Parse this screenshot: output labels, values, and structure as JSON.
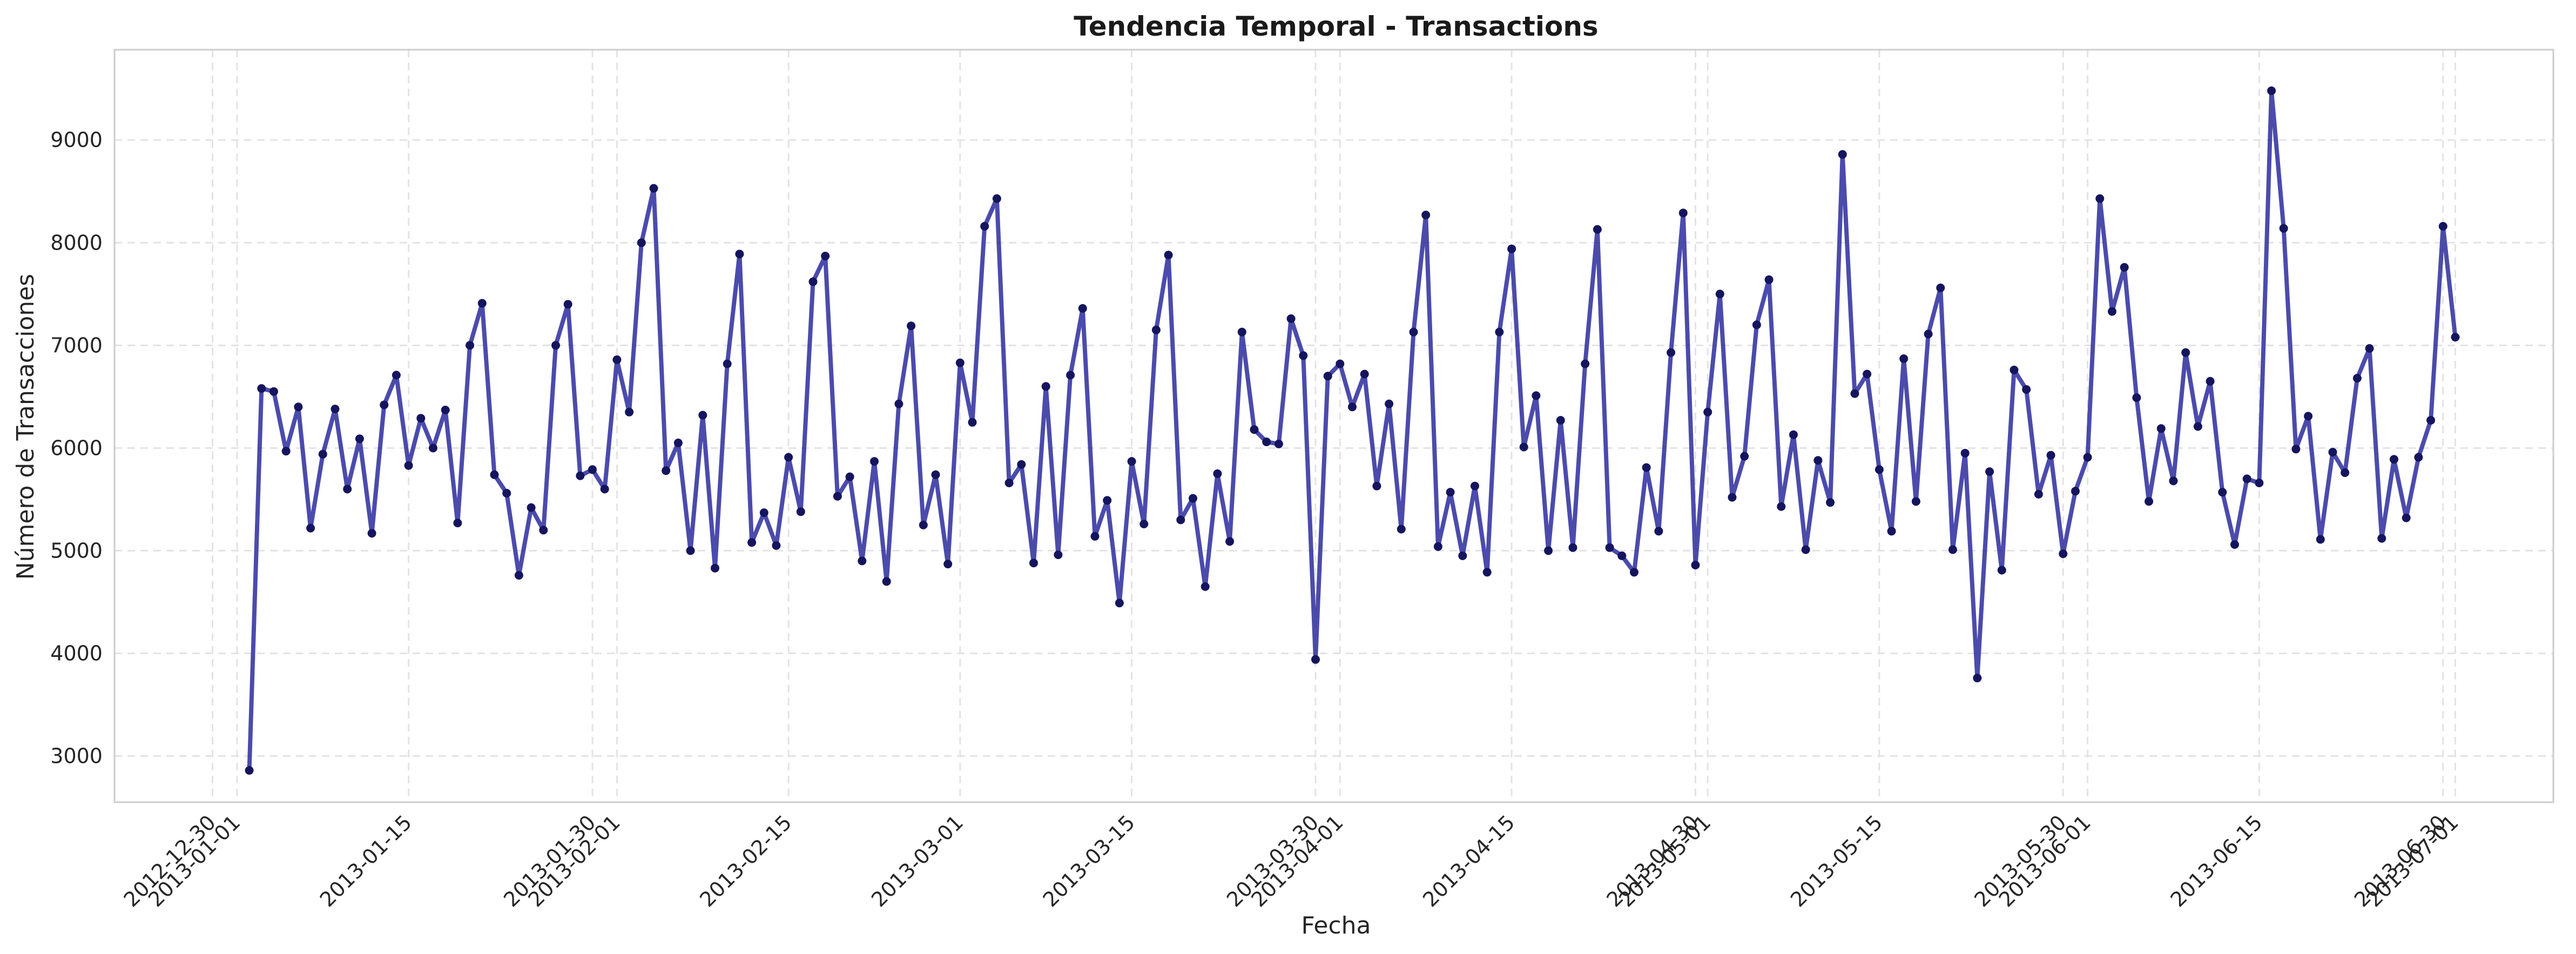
{
  "chart_data": {
    "type": "line",
    "title": "Tendencia Temporal - Transactions",
    "xlabel": "Fecha",
    "ylabel": "Número de Transacciones",
    "x_axis_type": "date",
    "xlim": [
      "2012-12-22",
      "2013-07-09"
    ],
    "ylim": [
      2550,
      9880
    ],
    "y_ticks": [
      3000,
      4000,
      5000,
      6000,
      7000,
      8000,
      9000
    ],
    "x_ticks": [
      "2012-12-30",
      "2013-01-01",
      "2013-01-15",
      "2013-01-30",
      "2013-02-01",
      "2013-02-15",
      "2013-03-01",
      "2013-03-15",
      "2013-03-30",
      "2013-04-01",
      "2013-04-15",
      "2013-04-30",
      "2013-05-01",
      "2013-05-15",
      "2013-05-30",
      "2013-06-01",
      "2013-06-15",
      "2013-06-30",
      "2013-07-01"
    ],
    "grid": true,
    "colors": {
      "line": "#2b2b9e",
      "marker": "#15155e",
      "grid": "#e3e3e3",
      "frame": "#cccccc"
    },
    "series": [
      {
        "x_start": "2013-01-02",
        "x_step_days": 1,
        "values": [
          2860,
          6580,
          6550,
          5970,
          6400,
          5220,
          5940,
          6380,
          5600,
          6090,
          5170,
          6420,
          6710,
          5830,
          6290,
          6000,
          6370,
          5270,
          7000,
          7410,
          5740,
          5560,
          4760,
          5420,
          5200,
          7000,
          7400,
          5730,
          5790,
          5600,
          6860,
          6350,
          8000,
          8530,
          5780,
          6050,
          5000,
          6320,
          4830,
          6820,
          7890,
          5080,
          5370,
          5050,
          5910,
          5380,
          7620,
          7870,
          5530,
          5720,
          4900,
          5870,
          4700,
          6430,
          7190,
          5250,
          5740,
          4870,
          6830,
          6250,
          8160,
          8430,
          5660,
          5840,
          4880,
          6600,
          4960,
          6710,
          7360,
          5140,
          5490,
          4490,
          5870,
          5260,
          7150,
          7880,
          5300,
          5510,
          4650,
          5750,
          5090,
          7130,
          6180,
          6060,
          6040,
          7260,
          6900,
          3940,
          6700,
          6820,
          6400,
          6720,
          5630,
          6430,
          5210,
          7130,
          8270,
          5040,
          5570,
          4950,
          5630,
          4790,
          7130,
          7940,
          6010,
          6510,
          5000,
          6270,
          5030,
          6820,
          8130,
          5030,
          4950,
          4790,
          5810,
          5190,
          6930,
          8290,
          4860,
          6350,
          7500,
          5520,
          5920,
          7200,
          7640,
          5430,
          6130,
          5010,
          5880,
          5470,
          8860,
          6530,
          6720,
          5790,
          5190,
          6870,
          5480,
          7110,
          7560,
          5010,
          5950,
          3760,
          5770,
          4810,
          6760,
          6570,
          5550,
          5930,
          4970,
          5580,
          5910,
          8430,
          7330,
          7760,
          6490,
          5480,
          6190,
          5680,
          6930,
          6210,
          6650,
          5570,
          5060,
          5700,
          5660,
          9480,
          8140,
          5990,
          6310,
          5110,
          5960,
          5760,
          6680,
          6970,
          5120,
          5890,
          5320,
          5910,
          6270,
          8160,
          7080
        ]
      }
    ]
  }
}
